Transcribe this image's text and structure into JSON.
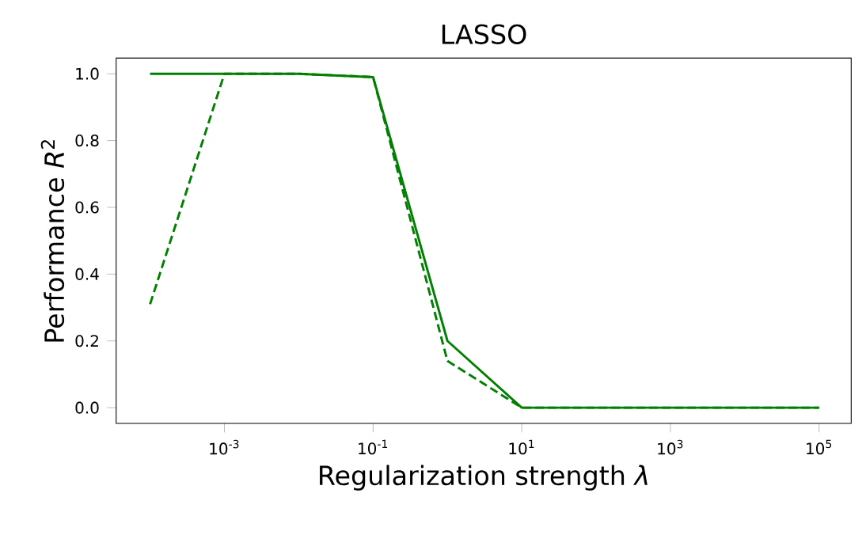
{
  "chart_data": {
    "type": "line",
    "title": "LASSO",
    "xlabel": "Regularization strength *λ*",
    "ylabel": "Performance *R*$^{2}$",
    "x": [
      0.0001,
      0.001,
      0.01,
      0.1,
      1,
      10,
      100,
      1000,
      10000,
      100000
    ],
    "series": [
      {
        "color": "#008000",
        "line_style": "solid",
        "values": [
          1.0,
          1.0,
          1.0,
          0.99,
          0.2,
          0.0,
          0.0,
          0.0,
          0.0,
          0.0
        ]
      },
      {
        "color": "#007f00",
        "line_style": "dashed",
        "values": [
          0.31,
          1.0,
          1.0,
          0.99,
          0.14,
          0.0,
          0.0,
          0.0,
          0.0,
          0.0
        ]
      }
    ],
    "log": "x",
    "xlim": [
      3.5e-05,
      270000
    ],
    "ylim": [
      -0.047,
      1.047
    ],
    "xticks": [
      {
        "value": 0.001,
        "label": "10$^{-3}$"
      },
      {
        "value": 0.1,
        "label": "10$^{-1}$"
      },
      {
        "value": 10,
        "label": "10$^{1}$"
      },
      {
        "value": 1000,
        "label": "10$^{3}$"
      },
      {
        "value": 100000,
        "label": "10$^{5}$"
      }
    ],
    "yticks": [
      {
        "value": 0,
        "label": "0.0"
      },
      {
        "value": 0.2,
        "label": "0.2"
      },
      {
        "value": 0.4,
        "label": "0.4"
      },
      {
        "value": 0.6,
        "label": "0.6"
      },
      {
        "value": 0.8,
        "label": "0.8"
      },
      {
        "value": 1.0,
        "label": "1.0"
      }
    ],
    "grid": false,
    "marker": "none"
  }
}
